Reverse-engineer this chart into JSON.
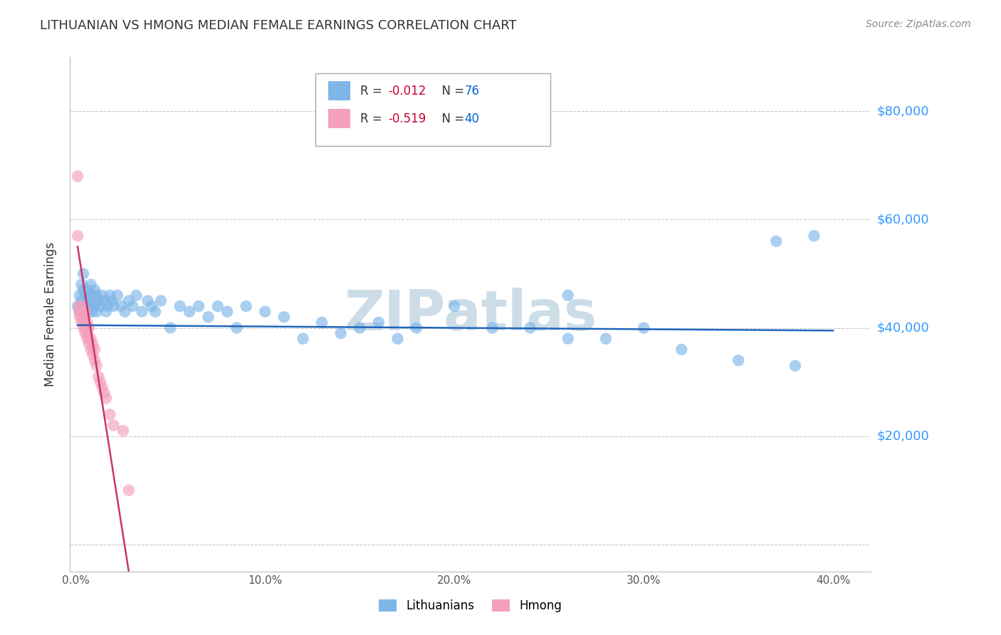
{
  "title": "LITHUANIAN VS HMONG MEDIAN FEMALE EARNINGS CORRELATION CHART",
  "source": "Source: ZipAtlas.com",
  "ylabel": "Median Female Earnings",
  "xlim": [
    -0.003,
    0.42
  ],
  "ylim": [
    -5000,
    90000
  ],
  "blue_color": "#7EB6E8",
  "pink_color": "#F4A0BB",
  "blue_line_color": "#2266BB",
  "pink_line_color": "#CC3366",
  "background_color": "#FFFFFF",
  "grid_color": "#CCCCCC",
  "right_label_color": "#3399FF",
  "title_color": "#333333",
  "watermark": "ZIPatlas",
  "watermark_color": "#CCDDE8",
  "legend_R_color": "#CC0033",
  "legend_N_color": "#0066CC",
  "blue_x": [
    0.001,
    0.002,
    0.002,
    0.003,
    0.003,
    0.003,
    0.004,
    0.004,
    0.004,
    0.005,
    0.005,
    0.005,
    0.006,
    0.006,
    0.006,
    0.007,
    0.007,
    0.007,
    0.008,
    0.008,
    0.009,
    0.009,
    0.01,
    0.01,
    0.011,
    0.011,
    0.012,
    0.013,
    0.014,
    0.015,
    0.016,
    0.017,
    0.018,
    0.019,
    0.02,
    0.022,
    0.024,
    0.026,
    0.028,
    0.03,
    0.032,
    0.035,
    0.038,
    0.04,
    0.042,
    0.045,
    0.05,
    0.055,
    0.06,
    0.065,
    0.07,
    0.075,
    0.08,
    0.085,
    0.09,
    0.1,
    0.11,
    0.12,
    0.13,
    0.14,
    0.15,
    0.16,
    0.17,
    0.18,
    0.2,
    0.22,
    0.24,
    0.26,
    0.28,
    0.3,
    0.32,
    0.35,
    0.38,
    0.39,
    0.26,
    0.37
  ],
  "blue_y": [
    44000,
    46000,
    43000,
    48000,
    45000,
    44000,
    50000,
    47000,
    44000,
    46000,
    44000,
    43000,
    47000,
    45000,
    44000,
    46000,
    44000,
    43000,
    48000,
    44000,
    46000,
    43000,
    47000,
    44000,
    46000,
    43000,
    45000,
    44000,
    46000,
    45000,
    43000,
    44000,
    46000,
    45000,
    44000,
    46000,
    44000,
    43000,
    45000,
    44000,
    46000,
    43000,
    45000,
    44000,
    43000,
    45000,
    40000,
    44000,
    43000,
    44000,
    42000,
    44000,
    43000,
    40000,
    44000,
    43000,
    42000,
    38000,
    41000,
    39000,
    40000,
    41000,
    38000,
    40000,
    44000,
    40000,
    40000,
    38000,
    38000,
    40000,
    36000,
    34000,
    33000,
    57000,
    46000,
    56000
  ],
  "pink_x": [
    0.001,
    0.001,
    0.002,
    0.002,
    0.002,
    0.003,
    0.003,
    0.003,
    0.003,
    0.004,
    0.004,
    0.004,
    0.004,
    0.005,
    0.005,
    0.005,
    0.005,
    0.006,
    0.006,
    0.006,
    0.006,
    0.007,
    0.007,
    0.007,
    0.008,
    0.008,
    0.009,
    0.009,
    0.01,
    0.01,
    0.011,
    0.012,
    0.013,
    0.014,
    0.015,
    0.016,
    0.018,
    0.02,
    0.025,
    0.028
  ],
  "pink_y": [
    68000,
    57000,
    44000,
    43000,
    42000,
    44000,
    43000,
    42000,
    41000,
    43000,
    42000,
    41000,
    40000,
    43000,
    42000,
    40000,
    39000,
    41000,
    40000,
    39000,
    38000,
    40000,
    38000,
    37000,
    38000,
    36000,
    37000,
    35000,
    36000,
    34000,
    33000,
    31000,
    30000,
    29000,
    28000,
    27000,
    24000,
    22000,
    21000,
    10000
  ],
  "blue_trend_x": [
    0.001,
    0.4
  ],
  "blue_trend_y": [
    40500,
    39500
  ],
  "pink_trend_x": [
    0.001,
    0.028
  ],
  "pink_trend_y": [
    55000,
    -5000
  ]
}
